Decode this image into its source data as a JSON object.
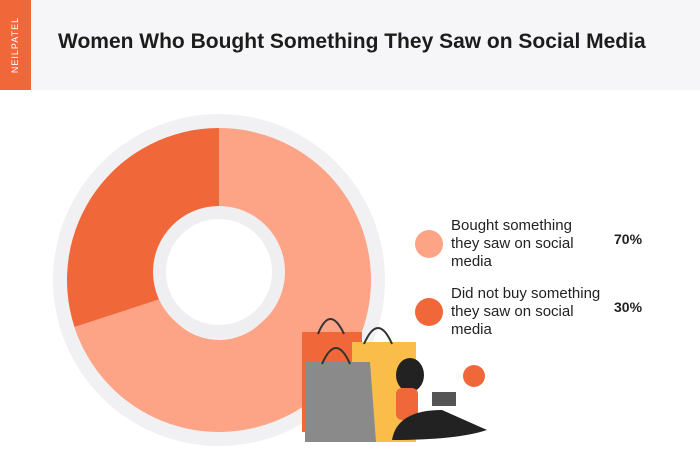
{
  "brand": "NEILPATEL",
  "chart_data": {
    "type": "pie",
    "title": "Women Who Bought Something They Saw on Social Media",
    "categories": [
      "Bought something they saw on social media",
      "Did not buy something they saw on social media"
    ],
    "values": [
      70,
      30
    ],
    "value_labels": [
      "70%",
      "30%"
    ],
    "colors": [
      "#fda487",
      "#f0673a"
    ]
  }
}
